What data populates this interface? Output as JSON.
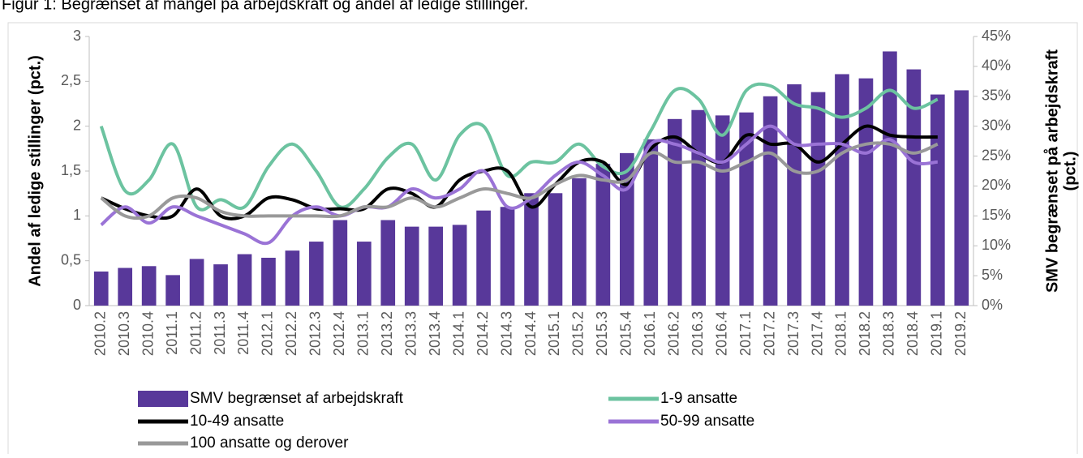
{
  "chart_data": {
    "type": "bar",
    "title": "Figur 1: Begrænset af mangel på arbejdskraft og andel af ledige stillinger.",
    "ylabel": "Andel af ledige stillinger (pct.)",
    "y2label": [
      "SMV begrænset på arbejdskraft",
      "(pct.)"
    ],
    "categories": [
      "2010.2",
      "2010.3",
      "2010.4",
      "2011.1",
      "2011.2",
      "2011.3",
      "2011.4",
      "2012.1",
      "2012.2",
      "2012.3",
      "2012.4",
      "2013.1",
      "2013.2",
      "2013.3",
      "2013.4",
      "2014.1",
      "2014.2",
      "2014.3",
      "2014.4",
      "2015.1",
      "2015.2",
      "2015.3",
      "2015.4",
      "2016.1",
      "2016.2",
      "2016.3",
      "2016.4",
      "2017.1",
      "2017.2",
      "2017.3",
      "2017.4",
      "2018.1",
      "2018.2",
      "2018.3",
      "2018.4",
      "2019.1",
      "2019.2"
    ],
    "ylim": [
      0,
      3
    ],
    "yticks": [
      0,
      {
        "value": 0.5,
        "label": "0,5"
      },
      1,
      {
        "value": 1.5,
        "label": "1,5"
      },
      2,
      {
        "value": 2.5,
        "label": "2,5"
      },
      3
    ],
    "y2lim": [
      0,
      45
    ],
    "y2ticks": [
      {
        "value": 0,
        "label": "0%"
      },
      {
        "value": 5,
        "label": "5%"
      },
      {
        "value": 10,
        "label": "10%"
      },
      {
        "value": 15,
        "label": "15%"
      },
      {
        "value": 20,
        "label": "20%"
      },
      {
        "value": 25,
        "label": "25%"
      },
      {
        "value": 30,
        "label": "30%"
      },
      {
        "value": 35,
        "label": "35%"
      },
      {
        "value": 40,
        "label": "40%"
      },
      {
        "value": 45,
        "label": "45%"
      }
    ],
    "series": [
      {
        "name": "SMV begrænset af arbejdskraft",
        "type": "bar",
        "axis": "y2",
        "color": "#58389a",
        "values": [
          5.7,
          6.3,
          6.6,
          5.1,
          7.8,
          6.9,
          8.6,
          8,
          9.2,
          10.7,
          14.3,
          10.7,
          14.3,
          13.2,
          13.2,
          13.5,
          15.9,
          16.5,
          18.8,
          18.8,
          21.3,
          23.7,
          25.5,
          27.8,
          31.2,
          32.7,
          31.8,
          32.3,
          35,
          37,
          35.7,
          38.7,
          38,
          42.5,
          39.5,
          35.3,
          36
        ]
      },
      {
        "name": "1-9 ansatte",
        "type": "line",
        "color": "#6cc3a0",
        "values": [
          2.0,
          1.28,
          1.4,
          1.8,
          1.1,
          1.18,
          1.1,
          1.55,
          1.8,
          1.5,
          1.1,
          1.3,
          1.65,
          1.8,
          1.4,
          1.9,
          2.0,
          1.45,
          1.6,
          1.6,
          1.8,
          1.55,
          1.5,
          1.95,
          2.4,
          2.3,
          1.9,
          2.4,
          2.45,
          2.25,
          2.2,
          2.1,
          2.2,
          2.4,
          2.2,
          2.3,
          null
        ]
      },
      {
        "name": "10-49 ansatte",
        "type": "line",
        "color": "#000000",
        "values": [
          1.2,
          1.08,
          1.0,
          1.0,
          1.3,
          1.0,
          1.0,
          1.2,
          1.18,
          1.08,
          1.08,
          1.08,
          1.3,
          1.25,
          1.1,
          1.4,
          1.5,
          1.5,
          1.1,
          1.35,
          1.6,
          1.6,
          1.35,
          1.75,
          1.88,
          1.7,
          1.6,
          1.9,
          1.8,
          1.8,
          1.6,
          1.8,
          2.0,
          1.9,
          1.88,
          1.88,
          null
        ]
      },
      {
        "name": "50-99 ansatte",
        "type": "line",
        "color": "#9a73d6",
        "values": [
          0.9,
          1.1,
          0.92,
          1.1,
          1.0,
          0.9,
          0.8,
          0.7,
          1.0,
          1.1,
          1.0,
          1.1,
          1.1,
          1.3,
          1.2,
          1.3,
          1.5,
          1.1,
          1.2,
          1.45,
          1.6,
          1.45,
          1.3,
          1.8,
          1.8,
          1.7,
          1.6,
          1.8,
          2.0,
          1.8,
          1.8,
          1.8,
          1.7,
          1.85,
          1.6,
          1.6,
          null
        ]
      },
      {
        "name": "100 ansatte og derover",
        "type": "line",
        "color": "#999999",
        "values": [
          1.2,
          1.0,
          1.0,
          1.2,
          1.2,
          1.05,
          1.0,
          1.0,
          1.0,
          1.0,
          1.0,
          1.1,
          1.1,
          1.2,
          1.1,
          1.2,
          1.3,
          1.25,
          1.2,
          1.35,
          1.45,
          1.4,
          1.4,
          1.7,
          1.6,
          1.6,
          1.5,
          1.6,
          1.7,
          1.5,
          1.5,
          1.7,
          1.8,
          1.8,
          1.7,
          1.8,
          null
        ]
      }
    ]
  }
}
